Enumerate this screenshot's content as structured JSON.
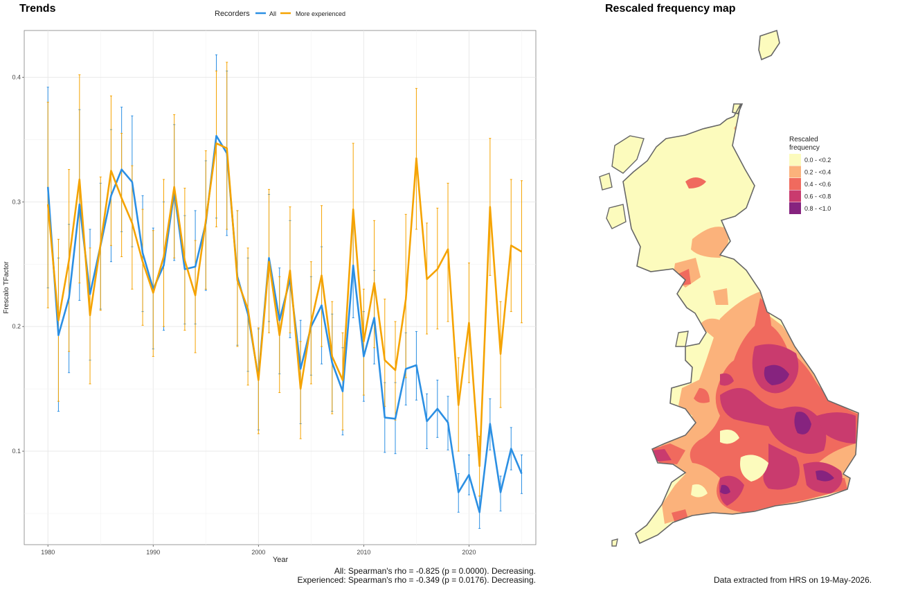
{
  "panels": {
    "trends_title": "Trends",
    "map_title": "Rescaled frequency map"
  },
  "legend": {
    "title": "Recorders",
    "items": [
      {
        "label": "All",
        "color": "#2b8fe3"
      },
      {
        "label": "More experienced",
        "color": "#f5a300"
      }
    ]
  },
  "footnotes": {
    "stat_all": "All: Spearman's rho = -0.825 (p = 0.0000). Decreasing.",
    "stat_experienced": "Experienced: Spearman's rho = -0.349 (p = 0.0176). Decreasing.",
    "data_source": "Data extracted from HRS on 19-May-2026."
  },
  "chart_data": {
    "type": "line",
    "xlabel": "Year",
    "ylabel": "Frescalo TFactor",
    "xlim": [
      1977.75,
      2026.35
    ],
    "ylim": [
      0.025,
      0.4375
    ],
    "xticks": [
      1980,
      1990,
      2000,
      2010,
      2020
    ],
    "yticks": [
      0.1,
      0.2,
      0.3,
      0.4
    ],
    "grid": true,
    "legend_position": "top",
    "x": [
      1980,
      1981,
      1982,
      1983,
      1984,
      1985,
      1986,
      1987,
      1988,
      1989,
      1990,
      1991,
      1992,
      1993,
      1994,
      1995,
      1996,
      1997,
      1998,
      1999,
      2000,
      2001,
      2002,
      2003,
      2004,
      2005,
      2006,
      2007,
      2008,
      2009,
      2010,
      2011,
      2012,
      2013,
      2014,
      2015,
      2016,
      2017,
      2018,
      2019,
      2020,
      2021,
      2022,
      2023,
      2024,
      2025
    ],
    "series": [
      {
        "name": "All",
        "color": "#2b8fe3",
        "values": [
          0.312,
          0.193,
          0.223,
          0.298,
          0.226,
          0.265,
          0.305,
          0.326,
          0.316,
          0.259,
          0.23,
          0.249,
          0.308,
          0.246,
          0.248,
          0.283,
          0.353,
          0.339,
          0.24,
          0.21,
          0.159,
          0.255,
          0.205,
          0.238,
          0.166,
          0.2,
          0.217,
          0.171,
          0.148,
          0.249,
          0.176,
          0.207,
          0.127,
          0.126,
          0.166,
          0.169,
          0.124,
          0.134,
          0.123,
          0.067,
          0.081,
          0.051,
          0.122,
          0.067,
          0.102,
          0.082
        ],
        "upper": [
          0.392,
          0.255,
          0.282,
          0.374,
          0.278,
          0.315,
          0.358,
          0.376,
          0.369,
          0.305,
          0.279,
          0.3,
          0.362,
          0.289,
          0.293,
          0.333,
          0.418,
          0.405,
          0.293,
          0.255,
          0.198,
          0.306,
          0.247,
          0.285,
          0.205,
          0.24,
          0.264,
          0.21,
          0.183,
          0.291,
          0.212,
          0.245,
          0.155,
          0.155,
          0.195,
          0.196,
          0.146,
          0.157,
          0.144,
          0.082,
          0.097,
          0.064,
          0.142,
          0.08,
          0.119,
          0.097
        ],
        "lower": [
          0.231,
          0.132,
          0.163,
          0.221,
          0.173,
          0.214,
          0.252,
          0.276,
          0.264,
          0.212,
          0.182,
          0.197,
          0.253,
          0.202,
          0.202,
          0.229,
          0.287,
          0.273,
          0.185,
          0.164,
          0.117,
          0.204,
          0.162,
          0.191,
          0.122,
          0.161,
          0.17,
          0.132,
          0.113,
          0.207,
          0.14,
          0.17,
          0.099,
          0.098,
          0.137,
          0.141,
          0.102,
          0.111,
          0.101,
          0.051,
          0.065,
          0.038,
          0.101,
          0.052,
          0.085,
          0.066
        ]
      },
      {
        "name": "More experienced",
        "color": "#f5a300",
        "values": [
          0.298,
          0.205,
          0.253,
          0.318,
          0.209,
          0.266,
          0.325,
          0.303,
          0.283,
          0.252,
          0.227,
          0.256,
          0.312,
          0.253,
          0.225,
          0.285,
          0.347,
          0.343,
          0.237,
          0.214,
          0.157,
          0.252,
          0.193,
          0.245,
          0.15,
          0.203,
          0.241,
          0.176,
          0.157,
          0.294,
          0.188,
          0.235,
          0.173,
          0.165,
          0.222,
          0.335,
          0.238,
          0.246,
          0.262,
          0.137,
          0.203,
          0.088,
          0.296,
          0.178,
          0.265,
          0.26
        ],
        "upper": [
          0.38,
          0.27,
          0.326,
          0.402,
          0.263,
          0.32,
          0.385,
          0.355,
          0.329,
          0.294,
          0.277,
          0.318,
          0.37,
          0.311,
          0.269,
          0.341,
          0.405,
          0.412,
          0.293,
          0.263,
          0.199,
          0.31,
          0.24,
          0.296,
          0.188,
          0.252,
          0.297,
          0.22,
          0.195,
          0.347,
          0.23,
          0.285,
          0.222,
          0.204,
          0.29,
          0.391,
          0.283,
          0.295,
          0.315,
          0.175,
          0.251,
          0.112,
          0.351,
          0.22,
          0.318,
          0.317
        ],
        "lower": [
          0.215,
          0.14,
          0.18,
          0.235,
          0.154,
          0.213,
          0.265,
          0.256,
          0.23,
          0.201,
          0.176,
          0.2,
          0.255,
          0.197,
          0.179,
          0.23,
          0.28,
          0.278,
          0.184,
          0.153,
          0.114,
          0.195,
          0.147,
          0.195,
          0.11,
          0.154,
          0.184,
          0.13,
          0.117,
          0.241,
          0.145,
          0.183,
          0.136,
          0.125,
          0.159,
          0.278,
          0.194,
          0.198,
          0.204,
          0.1,
          0.155,
          0.064,
          0.241,
          0.135,
          0.212,
          0.203
        ]
      }
    ]
  },
  "map": {
    "legend_title_line1": "Rescaled",
    "legend_title_line2": "frequency",
    "classes": [
      {
        "label": "0.0 - <0.2",
        "color": "#fcfbbd"
      },
      {
        "label": "0.2 - <0.4",
        "color": "#fbb27b"
      },
      {
        "label": "0.4 - <0.6",
        "color": "#f06a5e"
      },
      {
        "label": "0.6 - <0.8",
        "color": "#c93b6e"
      },
      {
        "label": "0.8 - <1.0",
        "color": "#86237f"
      }
    ],
    "outline_color": "#666666"
  }
}
